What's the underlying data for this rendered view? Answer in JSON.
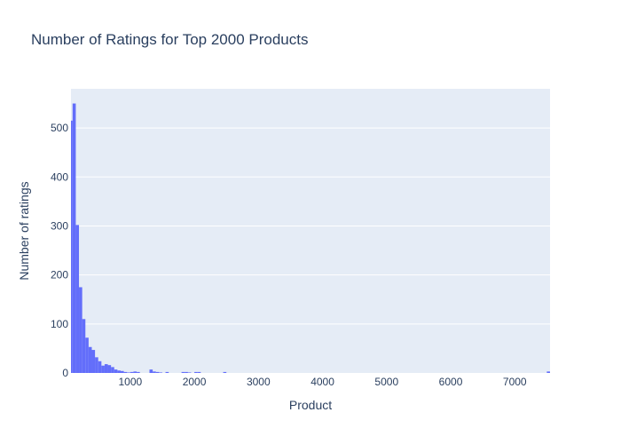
{
  "chart_data": {
    "type": "bar",
    "title": "Number of Ratings for Top 2000 Products",
    "xlabel": "Product",
    "ylabel": "Number of ratings",
    "xlim": [
      75,
      7550
    ],
    "ylim": [
      0,
      580
    ],
    "xticks": [
      1000,
      2000,
      3000,
      4000,
      5000,
      6000,
      7000
    ],
    "yticks": [
      0,
      100,
      200,
      300,
      400,
      500
    ],
    "grid": true,
    "colors": {
      "bar": "#636efa",
      "plot_bg": "#e5ecf6",
      "grid": "#ffffff",
      "text": "#2a3f5f"
    },
    "bin_width": 50,
    "x": [
      75,
      125,
      175,
      225,
      275,
      325,
      375,
      425,
      475,
      525,
      575,
      625,
      675,
      725,
      775,
      825,
      875,
      925,
      975,
      1025,
      1075,
      1125,
      1175,
      1225,
      1275,
      1325,
      1375,
      1425,
      1475,
      1525,
      1575,
      1625,
      1675,
      1725,
      1775,
      1825,
      1875,
      1925,
      1975,
      2025,
      2075,
      2125,
      2175,
      2225,
      2275,
      2325,
      2375,
      2425,
      2475,
      2525,
      2575,
      2625,
      2675,
      2725,
      2775,
      2825,
      2875,
      2925,
      2975,
      3025,
      3075,
      3125,
      3175,
      3225,
      3275,
      3325,
      3375,
      3425,
      3475,
      3525,
      3575,
      3625,
      3675,
      3725,
      3775,
      3825,
      3875,
      3925,
      3975,
      4025,
      4075,
      4125,
      4175,
      4225,
      4275,
      4325,
      4375,
      4425,
      4475,
      4525,
      4575,
      4625,
      4675,
      4725,
      4775,
      4825,
      4875,
      4925,
      4975,
      5025,
      5075,
      5125,
      5175,
      5225,
      5275,
      5325,
      5375,
      5425,
      5475,
      5525,
      5575,
      5625,
      5675,
      5725,
      5775,
      5825,
      5875,
      5925,
      5975,
      6025,
      6075,
      6125,
      6175,
      6225,
      6275,
      6325,
      6375,
      6425,
      6475,
      6525,
      6575,
      6625,
      6675,
      6725,
      6775,
      6825,
      6875,
      6925,
      6975,
      7025,
      7075,
      7125,
      7175,
      7225,
      7275,
      7325,
      7375,
      7425,
      7475,
      7525
    ],
    "values": [
      515,
      550,
      302,
      175,
      110,
      72,
      53,
      47,
      32,
      24,
      15,
      18,
      16,
      12,
      7,
      5,
      4,
      2,
      1,
      2,
      3,
      2,
      0,
      0,
      0,
      7,
      3,
      2,
      1,
      0,
      2,
      0,
      0,
      0,
      0,
      2,
      2,
      1,
      0,
      2,
      2,
      0,
      0,
      0,
      0,
      0,
      0,
      0,
      2,
      0,
      0,
      0,
      0,
      0,
      0,
      0,
      0,
      0,
      0,
      0,
      0,
      0,
      0,
      0,
      0,
      0,
      0,
      0,
      0,
      0,
      0,
      0,
      0,
      0,
      0,
      0,
      0,
      0,
      0,
      0,
      0,
      0,
      0,
      0,
      0,
      0,
      0,
      0,
      0,
      0,
      0,
      0,
      0,
      0,
      0,
      0,
      0,
      0,
      0,
      0,
      0,
      0,
      0,
      0,
      0,
      0,
      0,
      0,
      0,
      0,
      0,
      0,
      0,
      0,
      0,
      0,
      0,
      0,
      0,
      0,
      0,
      0,
      0,
      0,
      0,
      0,
      0,
      0,
      0,
      0,
      0,
      0,
      0,
      0,
      0,
      0,
      0,
      0,
      0,
      0,
      0,
      0,
      0,
      0,
      0,
      0,
      0,
      0,
      0,
      3
    ]
  }
}
